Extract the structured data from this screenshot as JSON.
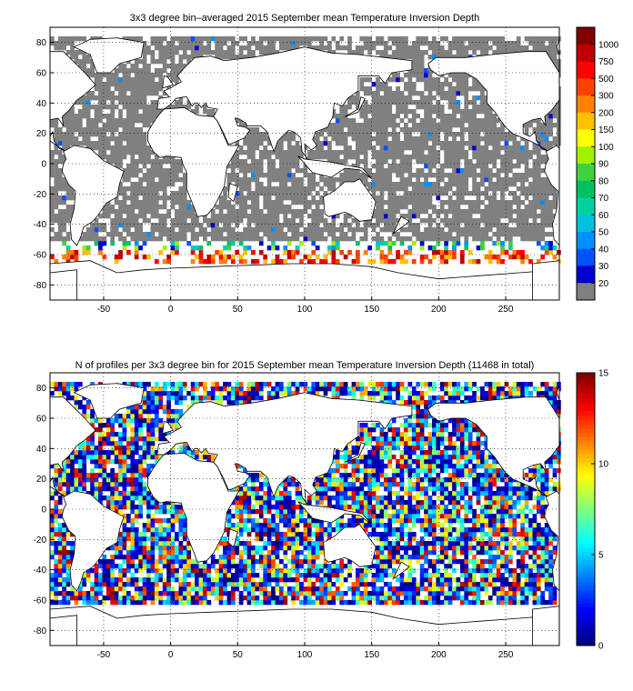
{
  "chart_data": [
    {
      "type": "heatmap",
      "title": "3x3 degree bin–averaged 2015 September mean Temperature Inversion Depth",
      "xlabel": "",
      "ylabel": "",
      "xlim": [
        -90,
        290
      ],
      "ylim": [
        -90,
        90
      ],
      "x_ticks": [
        -50,
        0,
        50,
        100,
        150,
        200,
        250
      ],
      "y_ticks": [
        80,
        60,
        40,
        20,
        0,
        -20,
        -40,
        -60,
        -80
      ],
      "grid": true,
      "colorbar_type": "discrete",
      "colorbar_labels": [
        "20",
        "30",
        "40",
        "50",
        "60",
        "70",
        "80",
        "90",
        "100",
        "150",
        "200",
        "300",
        "500",
        "750",
        "1000"
      ],
      "colorbar_colors": [
        "#808080",
        "#0000d0",
        "#0050ff",
        "#0090ff",
        "#00c0e0",
        "#00d0a0",
        "#00c060",
        "#40d040",
        "#a0f000",
        "#ffff00",
        "#ffc000",
        "#ff8000",
        "#ff4000",
        "#ff0000",
        "#c00000",
        "#800000"
      ]
    },
    {
      "type": "heatmap",
      "title": "N of profiles per 3x3 degree bin for 2015 September mean Temperature Inversion Depth  (11468 in total)",
      "xlabel": "",
      "ylabel": "",
      "xlim": [
        -90,
        290
      ],
      "ylim": [
        -90,
        90
      ],
      "x_ticks": [
        -50,
        0,
        50,
        100,
        150,
        200,
        250
      ],
      "y_ticks": [
        80,
        60,
        40,
        20,
        0,
        -20,
        -40,
        -60,
        -80
      ],
      "grid": true,
      "colorbar_type": "continuous",
      "colorbar_range": [
        0,
        15
      ],
      "colorbar_ticks": [
        "0",
        "5",
        "10",
        "15"
      ],
      "colormap": "jet",
      "total_profiles": 11468
    }
  ]
}
